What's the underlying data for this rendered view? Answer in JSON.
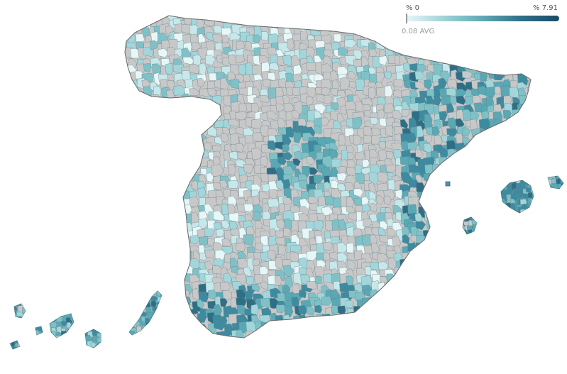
{
  "legend": {
    "min_label": "% 0",
    "max_label": "% 7.91",
    "avg_label": "0.08 AVG",
    "min_value": 0,
    "max_value": 7.91,
    "avg_value": 0.08,
    "gradient": [
      "#eaf6f6",
      "#9fd2d5",
      "#5fa9b3",
      "#2f6f88",
      "#1a4b66"
    ]
  },
  "colors": {
    "land_gray": "#c8c8c8",
    "border": "#8a8a8a",
    "stroke_dark": "#3c5f70",
    "ramp": [
      "#e7f6f6",
      "#c7e8ea",
      "#a3d6da",
      "#7fc1c7",
      "#5aa8b4",
      "#3e8ba0",
      "#2e6f86",
      "#1f4f66"
    ]
  }
}
